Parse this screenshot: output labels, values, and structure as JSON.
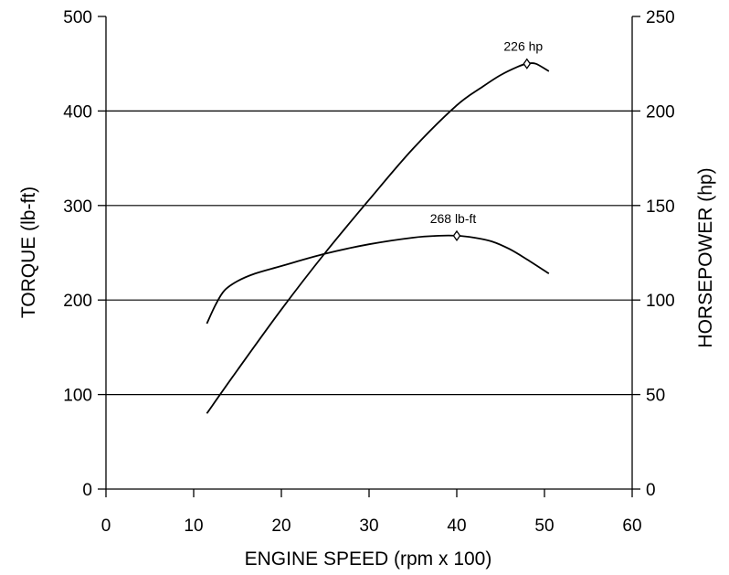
{
  "chart_data": {
    "type": "line",
    "x": {
      "label": "ENGINE SPEED (rpm x 100)",
      "min": 0,
      "max": 60,
      "ticks": [
        0,
        10,
        20,
        30,
        40,
        50,
        60
      ]
    },
    "y_left": {
      "label": "TORQUE (lb-ft)",
      "min": 0,
      "max": 500,
      "ticks": [
        0,
        100,
        200,
        300,
        400,
        500
      ]
    },
    "y_right": {
      "label": "HORSEPOWER (hp)",
      "min": 0,
      "max": 250,
      "ticks": [
        0,
        50,
        100,
        150,
        200,
        250
      ]
    },
    "grid": {
      "horizontal": true,
      "vertical": false
    },
    "series": [
      {
        "axis": "left",
        "color": "#000000",
        "points": [
          [
            11.5,
            175
          ],
          [
            12.5,
            195
          ],
          [
            13.5,
            210
          ],
          [
            15,
            220
          ],
          [
            17,
            228
          ],
          [
            20,
            236
          ],
          [
            25,
            249
          ],
          [
            30,
            259
          ],
          [
            35,
            266
          ],
          [
            38,
            268
          ],
          [
            40,
            268
          ],
          [
            42,
            266
          ],
          [
            44,
            262
          ],
          [
            46,
            254
          ],
          [
            48,
            243
          ],
          [
            50.5,
            228
          ]
        ],
        "peak": {
          "x": 40,
          "y": 268,
          "label": "268 lb-ft"
        }
      },
      {
        "axis": "right",
        "color": "#000000",
        "points": [
          [
            11.5,
            40
          ],
          [
            15,
            63
          ],
          [
            20,
            95
          ],
          [
            25,
            125
          ],
          [
            30,
            153
          ],
          [
            35,
            180
          ],
          [
            40,
            203
          ],
          [
            43,
            213
          ],
          [
            45,
            219
          ],
          [
            47,
            223.5
          ],
          [
            48,
            225
          ],
          [
            49,
            225
          ],
          [
            50.5,
            221
          ]
        ],
        "peak": {
          "x": 48,
          "y": 225,
          "label": "226 hp"
        }
      }
    ]
  }
}
